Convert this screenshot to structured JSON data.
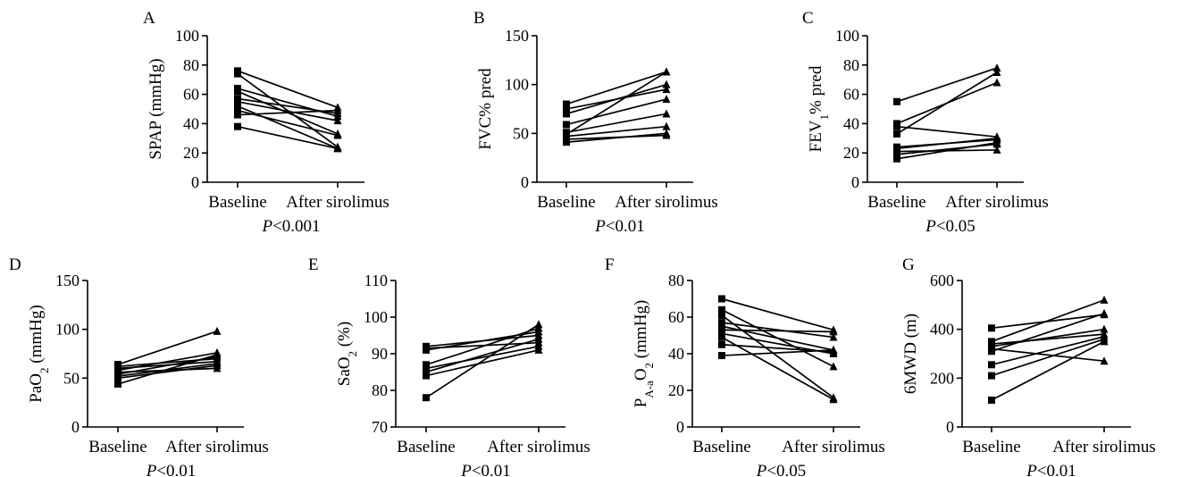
{
  "chart_data": [
    {
      "type": "line",
      "panel": "A",
      "ylabel": "SPAP (mmHg)",
      "categories": [
        "Baseline",
        "After sirolimus"
      ],
      "ylim": [
        0,
        100
      ],
      "yticks": [
        0,
        20,
        40,
        60,
        80,
        100
      ],
      "pvalue": {
        "italic": "P",
        "rest": "<0.001"
      },
      "series": [
        {
          "values": [
            76,
            51
          ]
        },
        {
          "values": [
            74,
            24
          ]
        },
        {
          "values": [
            64,
            45
          ]
        },
        {
          "values": [
            62,
            33
          ]
        },
        {
          "values": [
            57,
            47
          ]
        },
        {
          "values": [
            55,
            42
          ]
        },
        {
          "values": [
            52,
            23
          ]
        },
        {
          "values": [
            49,
            32
          ]
        },
        {
          "values": [
            46,
            49
          ]
        },
        {
          "values": [
            38,
            23
          ]
        }
      ]
    },
    {
      "type": "line",
      "panel": "B",
      "ylabel": "FVC% pred",
      "categories": [
        "Baseline",
        "After sirolimus"
      ],
      "ylim": [
        0,
        150
      ],
      "yticks": [
        0,
        50,
        100,
        150
      ],
      "pvalue": {
        "italic": "P",
        "rest": "<0.01"
      },
      "series": [
        {
          "values": [
            80,
            113
          ]
        },
        {
          "values": [
            75,
            95
          ]
        },
        {
          "values": [
            70,
            100
          ]
        },
        {
          "values": [
            59,
            85
          ]
        },
        {
          "values": [
            51,
            70
          ]
        },
        {
          "values": [
            49,
            113
          ]
        },
        {
          "values": [
            47,
            57
          ]
        },
        {
          "values": [
            44,
            48
          ]
        },
        {
          "values": [
            41,
            50
          ]
        }
      ]
    },
    {
      "type": "line",
      "panel": "C",
      "ylabel": "FEV",
      "ylabel_sub": "1",
      "ylabel_rest": "% pred",
      "categories": [
        "Baseline",
        "After sirolimus"
      ],
      "ylim": [
        0,
        100
      ],
      "yticks": [
        0,
        20,
        40,
        60,
        80,
        100
      ],
      "pvalue": {
        "italic": "P",
        "rest": "<0.05"
      },
      "series": [
        {
          "values": [
            55,
            78
          ]
        },
        {
          "values": [
            40,
            68
          ]
        },
        {
          "values": [
            38,
            31
          ]
        },
        {
          "values": [
            33,
            75
          ]
        },
        {
          "values": [
            24,
            29
          ]
        },
        {
          "values": [
            23,
            30
          ]
        },
        {
          "values": [
            21,
            22
          ]
        },
        {
          "values": [
            19,
            26
          ]
        },
        {
          "values": [
            16,
            27
          ]
        }
      ]
    },
    {
      "type": "line",
      "panel": "D",
      "ylabel": "PaO",
      "ylabel_sub": "2",
      "ylabel_rest": " (mmHg)",
      "categories": [
        "Baseline",
        "After sirolimus"
      ],
      "ylim": [
        0,
        150
      ],
      "yticks": [
        0,
        50,
        100,
        150
      ],
      "pvalue": {
        "italic": "P",
        "rest": "<0.01"
      },
      "series": [
        {
          "values": [
            64,
            98
          ]
        },
        {
          "values": [
            62,
            70
          ]
        },
        {
          "values": [
            60,
            67
          ]
        },
        {
          "values": [
            58,
            76
          ]
        },
        {
          "values": [
            56,
            60
          ]
        },
        {
          "values": [
            54,
            72
          ]
        },
        {
          "values": [
            52,
            65
          ]
        },
        {
          "values": [
            50,
            63
          ]
        },
        {
          "values": [
            44,
            74
          ]
        }
      ]
    },
    {
      "type": "line",
      "panel": "E",
      "ylabel": "SaO",
      "ylabel_sub": "2",
      "ylabel_rest": " (%)",
      "categories": [
        "Baseline",
        "After sirolimus"
      ],
      "ylim": [
        70,
        110
      ],
      "yticks": [
        70,
        80,
        90,
        100,
        110
      ],
      "pvalue": {
        "italic": "P",
        "rest": "<0.01"
      },
      "series": [
        {
          "values": [
            92,
            95
          ]
        },
        {
          "values": [
            91.5,
            93
          ]
        },
        {
          "values": [
            91,
            96
          ]
        },
        {
          "values": [
            87,
            97
          ]
        },
        {
          "values": [
            86,
            92
          ]
        },
        {
          "values": [
            85,
            94
          ]
        },
        {
          "values": [
            84,
            91
          ]
        },
        {
          "values": [
            78,
            98
          ]
        }
      ]
    },
    {
      "type": "line",
      "panel": "F",
      "ylabel": "P",
      "ylabel_sub": "A-a",
      "ylabel_rest": "O",
      "ylabel_sub2": "2",
      "ylabel_rest2": " (mmHg)",
      "categories": [
        "Baseline",
        "After sirolimus"
      ],
      "ylim": [
        0,
        80
      ],
      "yticks": [
        0,
        20,
        40,
        60,
        80
      ],
      "pvalue": {
        "italic": "P",
        "rest": "<0.05"
      },
      "series": [
        {
          "values": [
            70,
            53
          ]
        },
        {
          "values": [
            64,
            33
          ]
        },
        {
          "values": [
            61,
            16
          ]
        },
        {
          "values": [
            57,
            49
          ]
        },
        {
          "values": [
            55,
            42
          ]
        },
        {
          "values": [
            53,
            52
          ]
        },
        {
          "values": [
            51,
            40
          ]
        },
        {
          "values": [
            49,
            15
          ]
        },
        {
          "values": [
            45,
            41
          ]
        },
        {
          "values": [
            39,
            42
          ]
        }
      ]
    },
    {
      "type": "line",
      "panel": "G",
      "ylabel": "6MWD (m)",
      "categories": [
        "Baseline",
        "After sirolimus"
      ],
      "ylim": [
        0,
        600
      ],
      "yticks": [
        0,
        200,
        400,
        600
      ],
      "pvalue": {
        "italic": "P",
        "rest": "<0.01"
      },
      "series": [
        {
          "values": [
            405,
            460
          ]
        },
        {
          "values": [
            350,
            520
          ]
        },
        {
          "values": [
            340,
            380
          ]
        },
        {
          "values": [
            330,
            400
          ]
        },
        {
          "values": [
            320,
            270
          ]
        },
        {
          "values": [
            310,
            465
          ]
        },
        {
          "values": [
            255,
            370
          ]
        },
        {
          "values": [
            210,
            360
          ]
        },
        {
          "values": [
            110,
            350
          ]
        }
      ]
    }
  ]
}
